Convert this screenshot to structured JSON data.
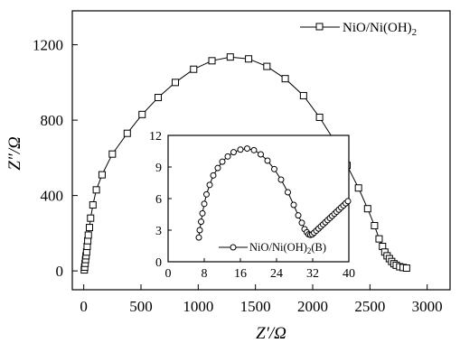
{
  "chart_data": [
    {
      "type": "scatter",
      "xlabel": "Z′/Ω",
      "ylabel": "Z″/Ω",
      "xlim": [
        -100,
        3200
      ],
      "ylim": [
        -100,
        1380
      ],
      "x_ticks": [
        0,
        500,
        1000,
        1500,
        2000,
        2500,
        3000
      ],
      "y_ticks": [
        0,
        400,
        800,
        1200
      ],
      "legend_position": "top-right",
      "grid": false,
      "series": [
        {
          "name": "NiO/Ni(OH)",
          "name_subscript": "2",
          "marker": "square",
          "line": true,
          "x": [
            5,
            8,
            12,
            16,
            20,
            25,
            30,
            35,
            40,
            50,
            60,
            80,
            110,
            160,
            250,
            380,
            510,
            650,
            800,
            960,
            1120,
            1280,
            1440,
            1600,
            1760,
            1920,
            2060,
            2190,
            2300,
            2400,
            2480,
            2540,
            2580,
            2610,
            2630,
            2650,
            2670,
            2690,
            2710,
            2730,
            2760,
            2790,
            2820
          ],
          "y": [
            5,
            20,
            40,
            60,
            80,
            100,
            130,
            160,
            190,
            230,
            280,
            350,
            430,
            510,
            620,
            730,
            830,
            920,
            1000,
            1070,
            1115,
            1135,
            1125,
            1085,
            1020,
            930,
            815,
            690,
            560,
            440,
            330,
            240,
            170,
            130,
            100,
            80,
            65,
            50,
            38,
            30,
            22,
            18,
            15
          ]
        }
      ]
    },
    {
      "type": "scatter",
      "xlim": [
        0,
        40
      ],
      "ylim": [
        0,
        12
      ],
      "x_ticks": [
        0,
        8,
        16,
        24,
        32,
        40
      ],
      "y_ticks": [
        0,
        3,
        6,
        9,
        12
      ],
      "legend_position": "bottom-right",
      "series": [
        {
          "name": "NiO/Ni(OH)",
          "name_subscript": "2",
          "name_suffix": "(B)",
          "marker": "circle",
          "line": true,
          "x": [
            6.8,
            7.0,
            7.3,
            7.6,
            8.0,
            8.5,
            9.2,
            10.0,
            11.0,
            12.0,
            13.2,
            14.5,
            16.0,
            17.5,
            19.0,
            20.5,
            22.0,
            23.5,
            25.0,
            26.5,
            27.8,
            28.8,
            29.6,
            30.2,
            30.7,
            31.1,
            31.5,
            31.9,
            32.3,
            32.8,
            33.3,
            33.8,
            34.3,
            34.8,
            35.3,
            35.8,
            36.3,
            36.8,
            37.3,
            37.8,
            38.3,
            38.8,
            39.3,
            39.8
          ],
          "y": [
            2.3,
            3.0,
            3.8,
            4.6,
            5.5,
            6.4,
            7.3,
            8.2,
            8.9,
            9.5,
            10.0,
            10.4,
            10.65,
            10.75,
            10.6,
            10.2,
            9.6,
            8.8,
            7.8,
            6.6,
            5.4,
            4.4,
            3.7,
            3.1,
            2.8,
            2.6,
            2.55,
            2.6,
            2.75,
            2.95,
            3.15,
            3.35,
            3.55,
            3.75,
            3.95,
            4.15,
            4.35,
            4.55,
            4.75,
            4.95,
            5.15,
            5.35,
            5.55,
            5.75
          ]
        }
      ]
    }
  ]
}
